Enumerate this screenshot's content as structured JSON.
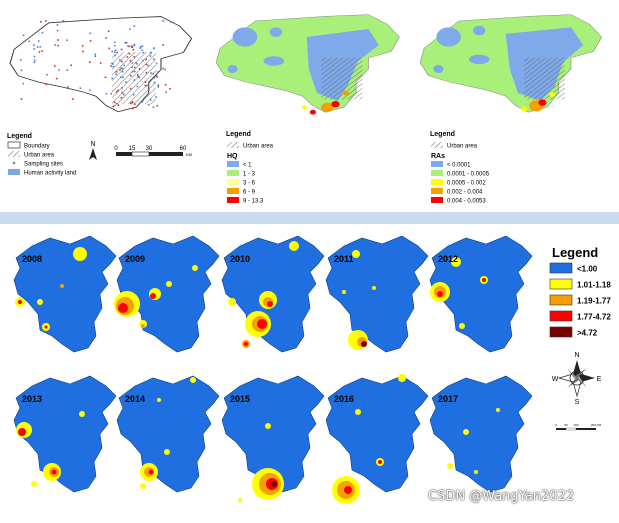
{
  "top": {
    "panel1": {
      "legend_title": "Legend",
      "items": [
        "Boundary",
        "Urban area",
        "Sampling sites",
        "Human activity land"
      ],
      "north": "N",
      "scale_ticks": [
        "0",
        "15",
        "30",
        "60"
      ],
      "scale_unit": "KM"
    },
    "panel2": {
      "legend_title": "Legend",
      "urban": "Urban area",
      "subtitle": "HQ",
      "classes": [
        "< 1",
        "1 - 3",
        "3 - 6",
        "6 - 9",
        "9 - 13.3"
      ]
    },
    "panel3": {
      "legend_title": "Legend",
      "urban": "Urban area",
      "subtitle": "RAs",
      "classes": [
        "< 0.0001",
        "0.0001 - 0.0005",
        "0.0005 - 0.002",
        "0.002 - 0.004",
        "0.004 - 0.0053"
      ]
    }
  },
  "years": [
    "2008",
    "2009",
    "2010",
    "2011",
    "2012",
    "2013",
    "2014",
    "2015",
    "2016",
    "2017"
  ],
  "bottom_legend": {
    "title": "Legend",
    "classes": [
      "<1.00",
      "1.01-1.18",
      "1.19-1.77",
      "1.77-4.72",
      ">4.72"
    ]
  },
  "compass": {
    "n": "N",
    "s": "S",
    "e": "E",
    "w": "W"
  },
  "scalebar_ticks": [
    "0",
    "50",
    "100",
    "200 KM"
  ],
  "colors": {
    "blue": "#1f6fe0",
    "yellow": "#ffff00",
    "orange": "#f5a000",
    "red": "#ff0000",
    "darkred": "#7a0000",
    "light_blue": "#7ea9ea",
    "light_green": "#a8f07a",
    "divider": "#c9dcef"
  },
  "watermark": "CSDN @WangYan2022"
}
